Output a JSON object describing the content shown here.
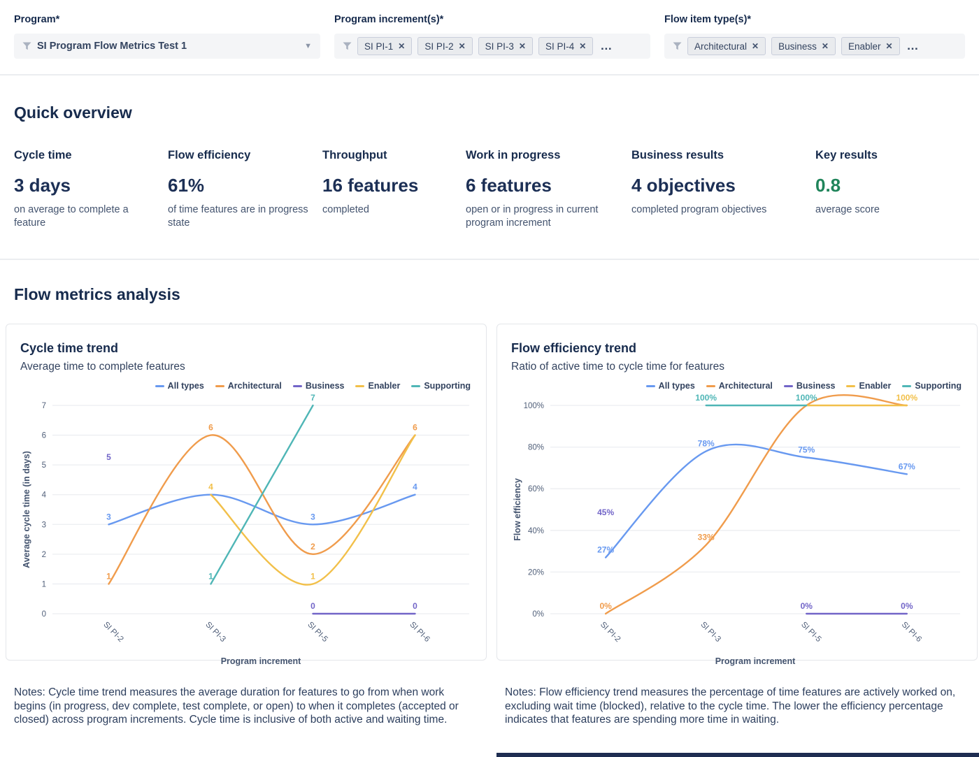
{
  "filters": {
    "program": {
      "label": "Program*",
      "value": "SI Program Flow Metrics Test 1"
    },
    "program_increments": {
      "label": "Program increment(s)*",
      "chips": [
        "SI PI-1",
        "SI PI-2",
        "SI PI-3",
        "SI PI-4"
      ],
      "more": "…"
    },
    "flow_item_types": {
      "label": "Flow item type(s)*",
      "chips": [
        "Architectural",
        "Business",
        "Enabler"
      ],
      "more": "…"
    }
  },
  "quick_overview": {
    "title": "Quick overview",
    "metrics": [
      {
        "label": "Cycle time",
        "value": "3 days",
        "description": "on average to complete a feature",
        "value_color": "#1c2f55"
      },
      {
        "label": "Flow efficiency",
        "value": "61%",
        "description": "of time features are in progress state",
        "value_color": "#1c2f55"
      },
      {
        "label": "Throughput",
        "value": "16 features",
        "description": "completed",
        "value_color": "#1c2f55"
      },
      {
        "label": "Work in progress",
        "value": "6 features",
        "description": "open or in progress in current program increment",
        "value_color": "#1c2f55"
      },
      {
        "label": "Business results",
        "value": "4 objectives",
        "description": "completed program objectives",
        "value_color": "#1c2f55"
      },
      {
        "label": "Key results",
        "value": "0.8",
        "description": "average score",
        "value_color": "#1f845a"
      }
    ]
  },
  "flow_metrics": {
    "title": "Flow metrics analysis",
    "notes": [
      "Notes: Cycle time trend measures the average duration for features to go from when work begins (in progress, dev complete, test complete, or open) to when it completes (accepted or closed) across program increments. Cycle time is inclusive of both active and waiting time.",
      "Notes: Flow efficiency trend measures the percentage of time features are actively worked on, excluding wait time (blocked), relative to the cycle time. The lower the efficiency percentage indicates that features are spending more time in waiting."
    ]
  },
  "chart_data": [
    {
      "type": "line",
      "title": "Cycle time trend",
      "subtitle": "Average time to complete features",
      "xlabel": "Program increment",
      "ylabel": "Average cycle time (in days)",
      "categories": [
        "SI PI-2",
        "SI PI-3",
        "SI PI-5",
        "SI PI-6"
      ],
      "ylim": [
        0,
        7
      ],
      "yticks": [
        0,
        1,
        2,
        3,
        4,
        5,
        6,
        7
      ],
      "tick_suffix": "",
      "grid": true,
      "legend_position": "top-right",
      "series": [
        {
          "name": "All types",
          "color": "#6899f0",
          "values": [
            3,
            4,
            3,
            4
          ],
          "labels_visible": [
            true,
            false,
            true,
            true
          ]
        },
        {
          "name": "Architectural",
          "color": "#f09c4c",
          "values": [
            1,
            6,
            2,
            6
          ],
          "labels_visible": [
            true,
            true,
            true,
            true
          ]
        },
        {
          "name": "Business",
          "color": "#7265c8",
          "values": [
            5,
            null,
            0,
            0
          ],
          "labels_visible": [
            true,
            false,
            true,
            true
          ]
        },
        {
          "name": "Enabler",
          "color": "#f2c04a",
          "values": [
            null,
            4,
            1,
            6
          ],
          "labels_visible": [
            false,
            true,
            true,
            false
          ]
        },
        {
          "name": "Supporting",
          "color": "#4fb6b6",
          "values": [
            null,
            1,
            7,
            null
          ],
          "labels_visible": [
            false,
            true,
            true,
            false
          ]
        }
      ]
    },
    {
      "type": "line",
      "title": "Flow efficiency trend",
      "subtitle": "Ratio of active time to cycle time for features",
      "xlabel": "Program increment",
      "ylabel": "Flow efficiency",
      "categories": [
        "SI PI-2",
        "SI PI-3",
        "SI PI-5",
        "SI PI-6"
      ],
      "ylim": [
        0,
        100
      ],
      "yticks": [
        0,
        20,
        40,
        60,
        80,
        100
      ],
      "tick_suffix": "%",
      "grid": true,
      "legend_position": "top-right",
      "series": [
        {
          "name": "All types",
          "color": "#6899f0",
          "values": [
            27,
            78,
            75,
            67
          ],
          "labels_visible": [
            true,
            true,
            true,
            true
          ]
        },
        {
          "name": "Architectural",
          "color": "#f09c4c",
          "values": [
            0,
            33,
            100,
            100
          ],
          "labels_visible": [
            true,
            true,
            false,
            false
          ]
        },
        {
          "name": "Business",
          "color": "#7265c8",
          "values": [
            45,
            null,
            0,
            0
          ],
          "labels_visible": [
            true,
            false,
            true,
            true
          ]
        },
        {
          "name": "Enabler",
          "color": "#f2c04a",
          "values": [
            null,
            null,
            100,
            100
          ],
          "labels_visible": [
            false,
            false,
            false,
            true
          ]
        },
        {
          "name": "Supporting",
          "color": "#4fb6b6",
          "values": [
            null,
            100,
            100,
            null
          ],
          "labels_visible": [
            false,
            true,
            true,
            false
          ]
        }
      ]
    }
  ]
}
